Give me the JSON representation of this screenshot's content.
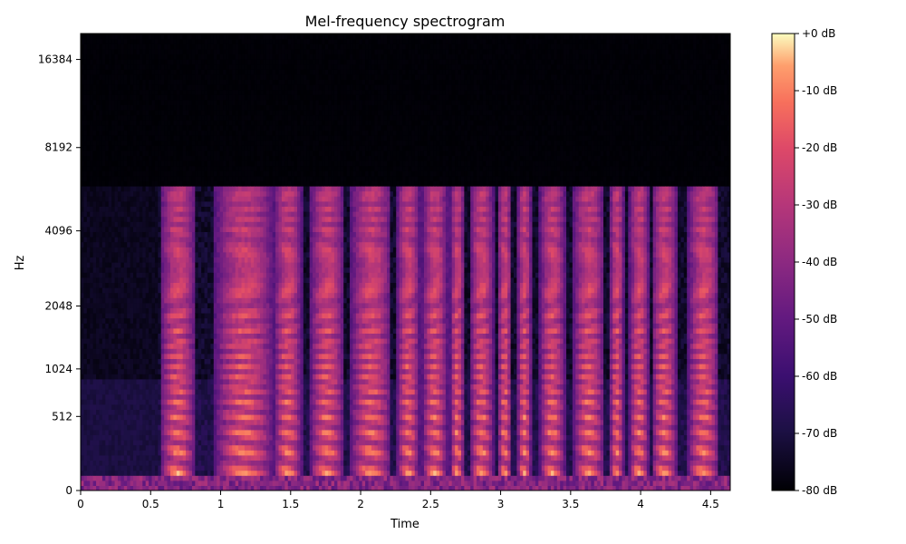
{
  "chart_data": {
    "type": "heatmap",
    "title": "Mel-frequency spectrogram",
    "xlabel": "Time",
    "ylabel": "Hz",
    "xlim": [
      0,
      4.64
    ],
    "x_ticks": [
      0,
      0.5,
      1,
      1.5,
      2,
      2.5,
      3,
      3.5,
      4,
      4.5
    ],
    "x_tick_labels": [
      "0",
      "0.5",
      "1",
      "1.5",
      "2",
      "2.5",
      "3",
      "3.5",
      "4",
      "4.5"
    ],
    "y_scale": "mel",
    "y_ticks": [
      0,
      512,
      1024,
      2048,
      4096,
      8192,
      16384
    ],
    "y_tick_labels": [
      "0",
      "512",
      "1024",
      "2048",
      "4096",
      "8192",
      "16384"
    ],
    "colormap": "magma",
    "colorbar": {
      "range": [
        -80,
        0
      ],
      "ticks": [
        0,
        -10,
        -20,
        -30,
        -40,
        -50,
        -60,
        -70,
        -80
      ],
      "tick_labels": [
        "+0 dB",
        "-10 dB",
        "-20 dB",
        "-30 dB",
        "-40 dB",
        "-50 dB",
        "-60 dB",
        "-70 dB",
        "-80 dB"
      ]
    },
    "energy_cutoff_hz": 6000,
    "voiced_segments_seconds": [
      [
        0.57,
        0.82
      ],
      [
        0.96,
        1.38
      ],
      [
        1.38,
        1.58
      ],
      [
        1.64,
        1.88
      ],
      [
        1.93,
        2.22
      ],
      [
        2.26,
        2.42
      ],
      [
        2.44,
        2.62
      ],
      [
        2.64,
        2.74
      ],
      [
        2.78,
        2.95
      ],
      [
        2.98,
        3.08
      ],
      [
        3.12,
        3.22
      ],
      [
        3.28,
        3.46
      ],
      [
        3.52,
        3.74
      ],
      [
        3.78,
        3.88
      ],
      [
        3.92,
        4.06
      ],
      [
        4.08,
        4.26
      ],
      [
        4.34,
        4.56
      ]
    ]
  }
}
